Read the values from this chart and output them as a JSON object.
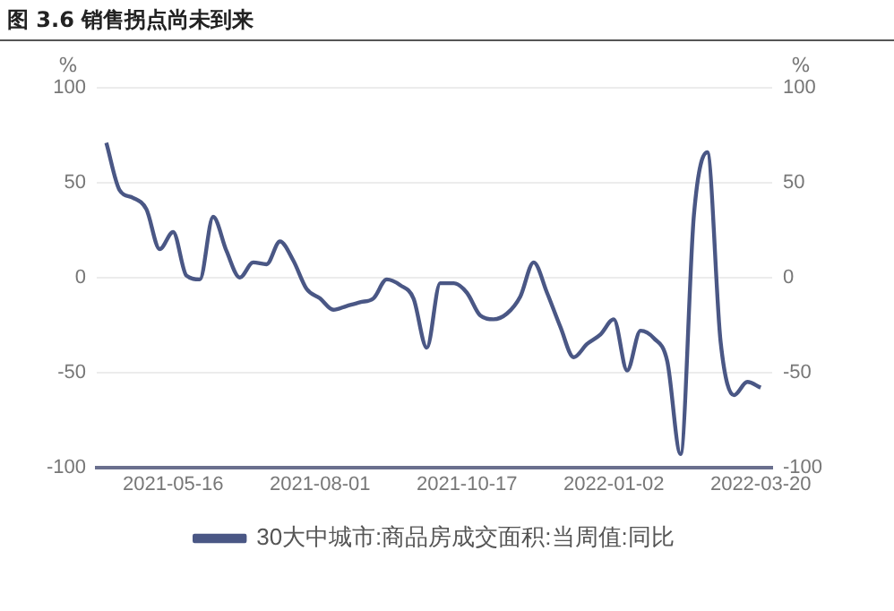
{
  "chart_data": {
    "type": "line",
    "title": "图 3.6 销售拐点尚未到来",
    "ylabel": "%",
    "y2label": "%",
    "x": [
      "2021-04-11",
      "2021-04-18",
      "2021-04-25",
      "2021-05-02",
      "2021-05-09",
      "2021-05-16",
      "2021-05-23",
      "2021-05-30",
      "2021-06-06",
      "2021-06-13",
      "2021-06-20",
      "2021-06-27",
      "2021-07-04",
      "2021-07-11",
      "2021-07-18",
      "2021-07-25",
      "2021-08-01",
      "2021-08-08",
      "2021-08-15",
      "2021-08-22",
      "2021-08-29",
      "2021-09-05",
      "2021-09-12",
      "2021-09-19",
      "2021-09-26",
      "2021-10-03",
      "2021-10-10",
      "2021-10-17",
      "2021-10-24",
      "2021-10-31",
      "2021-11-07",
      "2021-11-14",
      "2021-11-21",
      "2021-11-28",
      "2021-12-05",
      "2021-12-12",
      "2021-12-19",
      "2021-12-26",
      "2022-01-02",
      "2022-01-09",
      "2022-01-16",
      "2022-01-23",
      "2022-01-30",
      "2022-02-06",
      "2022-02-13",
      "2022-02-20",
      "2022-02-27",
      "2022-03-06",
      "2022-03-13",
      "2022-03-20"
    ],
    "series": [
      {
        "name": "30大中城市:商品房成交面积:当周值:同比",
        "color": "#4a5785",
        "values": [
          71,
          46,
          42,
          36,
          15,
          24,
          1,
          -1,
          32,
          14,
          0,
          8,
          7,
          19,
          9,
          -6,
          -11,
          -17,
          -15,
          -13,
          -11,
          -1,
          -4,
          -11,
          -37,
          -3,
          -3,
          -8,
          -20,
          -22,
          -19,
          -10,
          8,
          -8,
          -26,
          -42,
          -35,
          -30,
          -22,
          -49,
          -28,
          -32,
          -44,
          -93,
          33,
          66,
          -34,
          -62,
          -55,
          -58
        ]
      }
    ],
    "xlim": [
      "2021-04-06",
      "2022-03-26"
    ],
    "xticks": [
      "2021-05-16",
      "2021-08-01",
      "2021-10-17",
      "2022-01-02",
      "2022-03-20"
    ],
    "ylim": [
      -100,
      100
    ],
    "yticks": [
      -100,
      -50,
      0,
      50,
      100
    ],
    "y2lim": [
      -100,
      100
    ],
    "y2ticks": [
      -100,
      -50,
      0,
      50,
      100
    ],
    "grid": "y",
    "legend": "bottom",
    "marker": "none",
    "line_style": "solid"
  }
}
